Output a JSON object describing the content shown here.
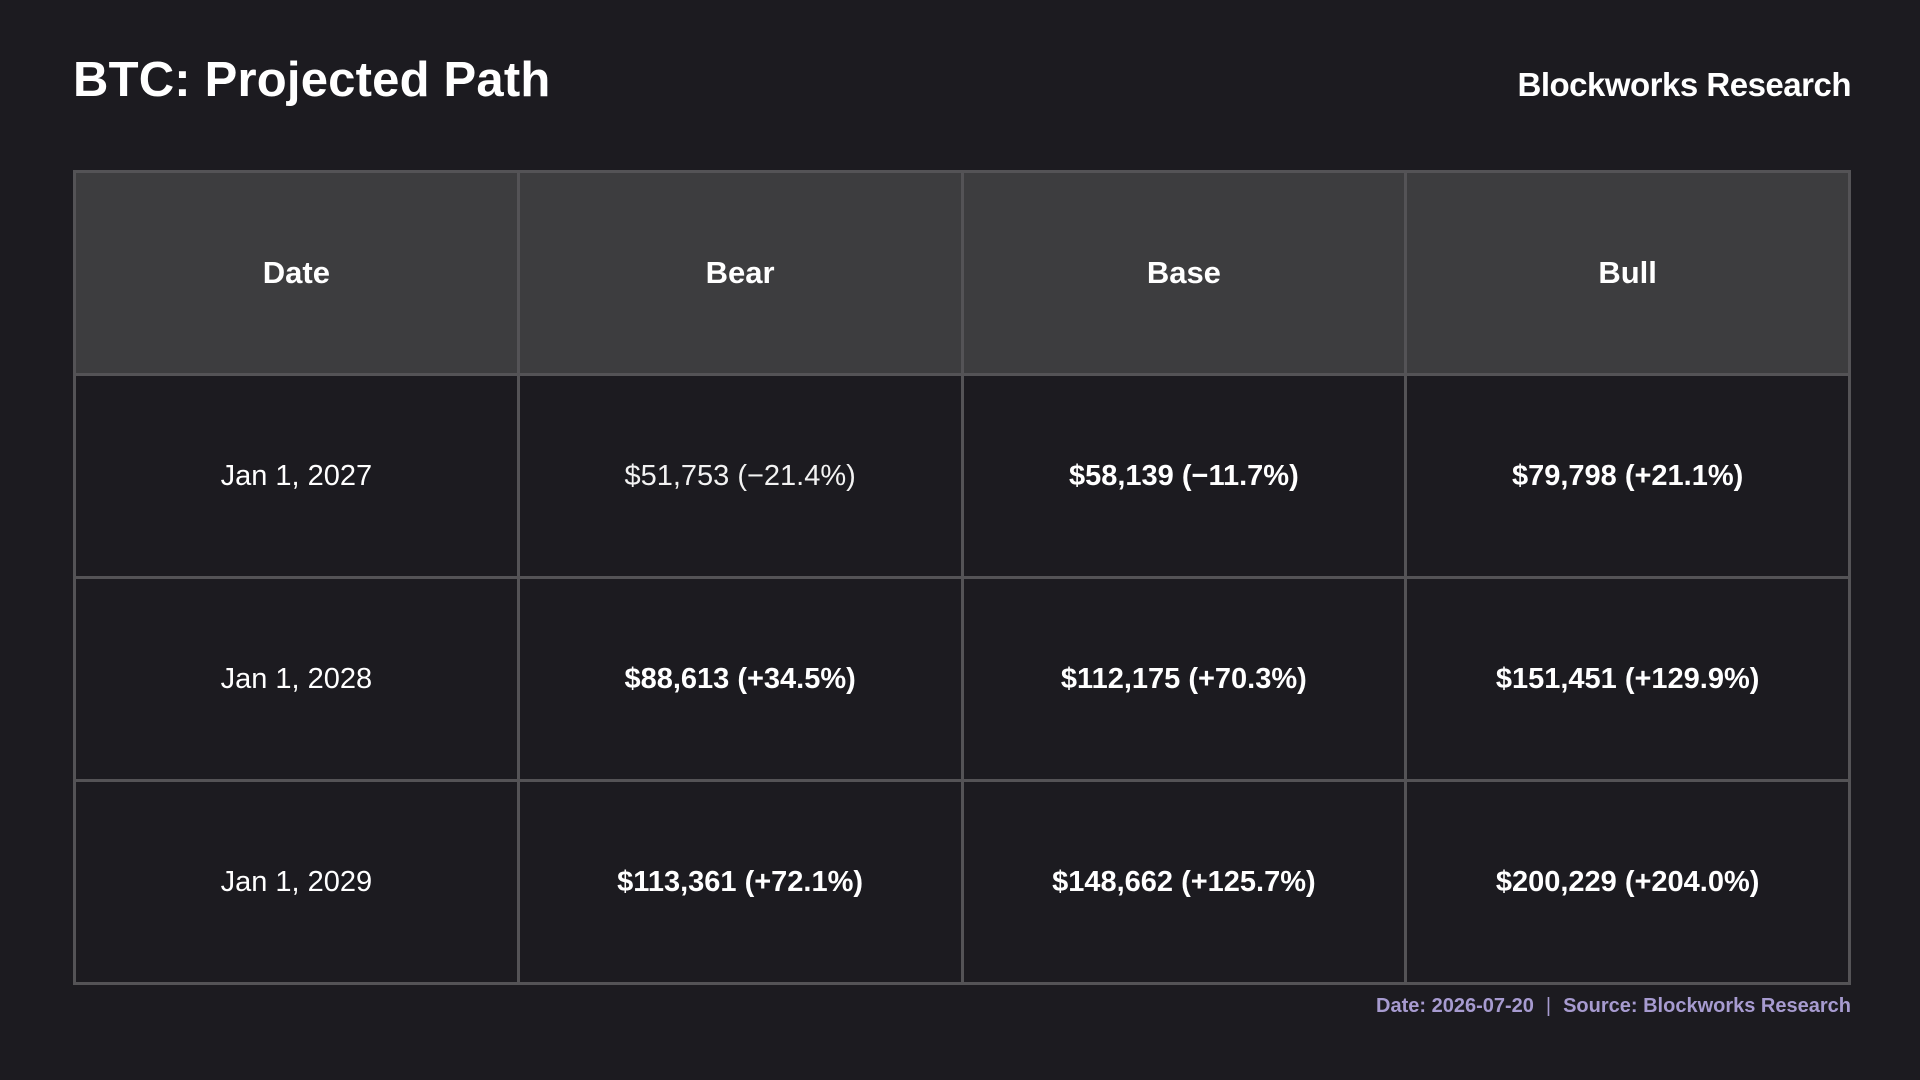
{
  "header": {
    "title": "BTC: Projected Path",
    "brand": "Blockworks Research"
  },
  "chart_data": {
    "type": "table",
    "columns": [
      "Date",
      "Bear",
      "Base",
      "Bull"
    ],
    "rows": [
      [
        "Jan 1, 2027",
        "$51,753 (−21.4%)",
        "$58,139 (−11.7%)",
        "$79,798 (+21.1%)"
      ],
      [
        "Jan 1, 2028",
        "$88,613 (+34.5%)",
        "$112,175 (+70.3%)",
        "$151,451 (+129.9%)"
      ],
      [
        "Jan 1, 2029",
        "$113,361 (+72.1%)",
        "$148,662 (+125.7%)",
        "$200,229 (+204.0%)"
      ]
    ]
  },
  "footer": {
    "date": "Date: 2026-07-20",
    "separator": "|",
    "source": "Source: Blockworks Research"
  },
  "colors": {
    "background": "#1c1b20",
    "header_row": "#3d3d3f",
    "grid": "#545356",
    "text": "#ffffff",
    "footer_text": "#a79bd0"
  }
}
